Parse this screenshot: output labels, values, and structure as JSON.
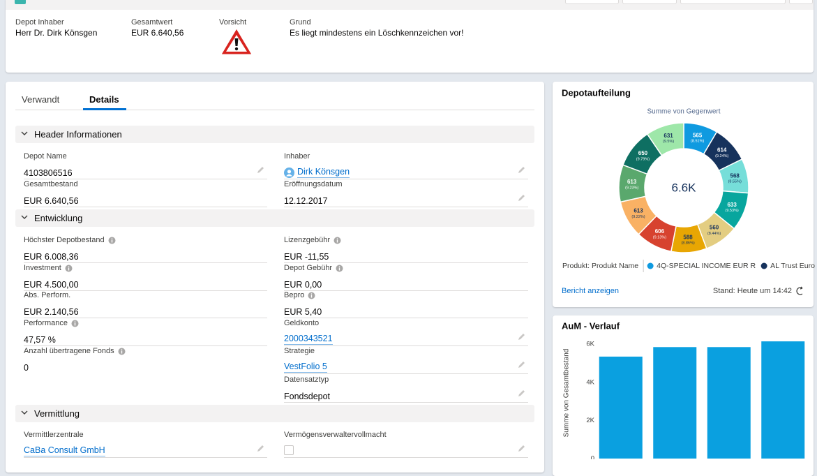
{
  "header": {
    "fields": [
      {
        "label": "Depot Inhaber",
        "value": "Herr Dr. Dirk Könsgen"
      },
      {
        "label": "Gesamtwert",
        "value": "EUR 6.640,56"
      },
      {
        "label": "Vorsicht"
      },
      {
        "label": "Grund",
        "value": "Es liegt mindestens ein Löschkennzeichen vor!"
      }
    ]
  },
  "tabs": [
    "Verwandt",
    "Details"
  ],
  "sections": [
    {
      "title": "Header Informationen",
      "left": [
        {
          "label": "Depot Name",
          "value": "4103806516"
        },
        {
          "label": "Gesamtbestand",
          "value": "EUR 6.640,56"
        }
      ],
      "right": [
        {
          "label": "Inhaber",
          "value": "Dirk Könsgen"
        },
        {
          "label": "Eröffnungsdatum",
          "value": "12.12.2017"
        }
      ]
    },
    {
      "title": "Entwicklung",
      "left": [
        {
          "label": "Höchster Depotbestand",
          "value": "EUR 6.008,36"
        },
        {
          "label": "Investment",
          "value": "EUR 4.500,00"
        },
        {
          "label": "Abs. Perform.",
          "value": "EUR 2.140,56"
        },
        {
          "label": "Performance",
          "value": "47,57 %"
        },
        {
          "label": "Anzahl übertragene Fonds",
          "value": "0"
        }
      ],
      "right": [
        {
          "label": "Lizenzgebühr",
          "value": "EUR -11,55"
        },
        {
          "label": "Depot Gebühr",
          "value": "EUR 0,00"
        },
        {
          "label": "Bepro",
          "value": "EUR 5,40"
        },
        {
          "label": "Geldkonto",
          "value": "2000343521"
        },
        {
          "label": "Strategie",
          "value": "VestFolio 5"
        },
        {
          "label": "Datensatztyp",
          "value": "Fondsdepot"
        }
      ]
    },
    {
      "title": "Vermittlung",
      "left": [
        {
          "label": "Vermittlerzentrale",
          "value": "CaBa Consult GmbH"
        }
      ],
      "right": [
        {
          "label": "Vermögensverwaltervollmacht"
        }
      ]
    }
  ],
  "chart_data": [
    {
      "type": "donut",
      "title": "Depotaufteilung",
      "subtitle": "Summe von Gegenwert",
      "center_label": "6.6K",
      "categories": [
        "4Q-SPECIAL INCOME EUR R",
        "AL Trust Euro",
        null,
        null,
        null,
        null,
        null,
        null,
        null,
        null,
        null
      ],
      "values": [
        565,
        614,
        568,
        633,
        560,
        588,
        606,
        613,
        613,
        650,
        631
      ],
      "percent_labels": [
        "(8.51%)",
        "(9.24%)",
        "(8.55%)",
        "(9.53%)",
        "(8.44%)",
        "(8.86%)",
        "(9.13%)",
        "(9.22%)",
        "(9.23%)",
        "(9.79%)",
        "(9.5%)"
      ],
      "colors": [
        "#0f9ae0",
        "#16325c",
        "#76ded9",
        "#08a69e",
        "#e3cd81",
        "#e8a603",
        "#d7422f",
        "#f9b164",
        "#5aa86d",
        "#0e6f62",
        "#9ee7a9"
      ],
      "legend_title": "Produkt: Produkt Name",
      "link": "Bericht anzeigen",
      "footnote": "Stand: Heute um 14:42"
    },
    {
      "type": "bar",
      "title": "AuM - Verlauf",
      "y_label": "Summe von Gesamtbestand",
      "categories": [
        null,
        null,
        null,
        null
      ],
      "values": [
        5350,
        5850,
        5850,
        6150
      ],
      "color": "#0aa0e0",
      "ylim": [
        0,
        6300
      ],
      "yticks": [
        0,
        {
          "value": 2000,
          "label": "2K"
        },
        {
          "value": 4000,
          "label": "4K"
        },
        {
          "value": 6000,
          "label": "6K"
        }
      ]
    }
  ]
}
